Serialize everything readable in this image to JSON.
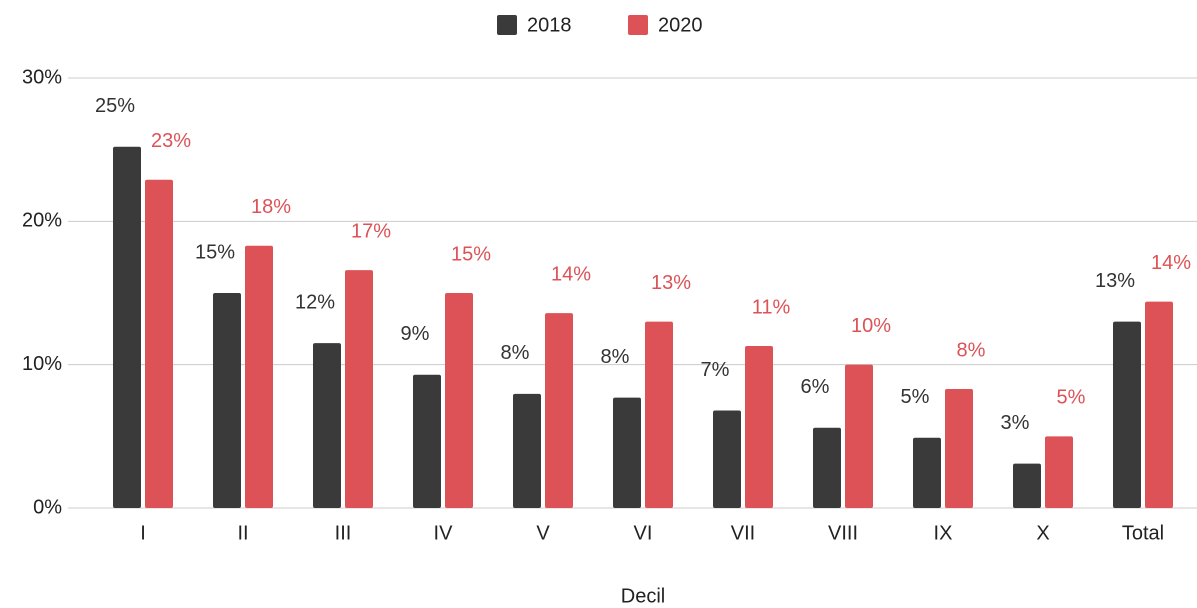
{
  "chart_data": {
    "type": "bar",
    "x_label": "Decil",
    "categories": [
      "I",
      "II",
      "III",
      "IV",
      "V",
      "VI",
      "VII",
      "VIII",
      "IX",
      "X",
      "Total"
    ],
    "series": [
      {
        "name": "2018",
        "color": "#3a3a3a",
        "values": [
          25.2,
          15.0,
          11.5,
          9.3,
          7.96,
          7.7,
          6.8,
          5.6,
          4.9,
          3.1,
          13.0
        ],
        "value_labels": [
          "25%",
          "15%",
          "12%",
          "9%",
          "8%",
          "8%",
          "7%",
          "6%",
          "5%",
          "3%",
          "13%"
        ]
      },
      {
        "name": "2020",
        "color": "#dc5257",
        "values": [
          22.9,
          18.3,
          16.6,
          15.0,
          13.6,
          13.0,
          11.3,
          10.0,
          8.3,
          5.0,
          14.4
        ],
        "value_labels": [
          "23%",
          "18%",
          "17%",
          "15%",
          "14%",
          "13%",
          "11%",
          "10%",
          "8%",
          "5%",
          "14%"
        ]
      }
    ],
    "ylim": [
      0,
      30
    ],
    "yticks": [
      {
        "value": 0,
        "label": "0%"
      },
      {
        "value": 10,
        "label": "10%"
      },
      {
        "value": 20,
        "label": "20%"
      },
      {
        "value": 30,
        "label": "30%"
      }
    ],
    "grid": true,
    "legend": "top"
  }
}
